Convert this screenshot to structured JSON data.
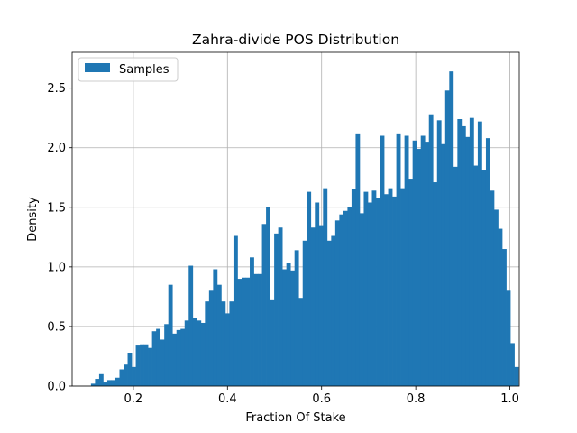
{
  "chart_data": {
    "type": "bar",
    "title": "Zahra-divide POS Distribution",
    "xlabel": "Fraction Of Stake",
    "ylabel": "Density",
    "xlim": [
      0.07,
      1.02
    ],
    "ylim": [
      0,
      2.8
    ],
    "xticks": [
      0.2,
      0.4,
      0.6,
      0.8,
      1.0
    ],
    "xtick_labels": [
      "0.2",
      "0.4",
      "0.6",
      "0.8",
      "1.0"
    ],
    "yticks": [
      0.0,
      0.5,
      1.0,
      1.5,
      2.0,
      2.5
    ],
    "ytick_labels": [
      "0.0",
      "0.5",
      "1.0",
      "1.5",
      "2.0",
      "2.5"
    ],
    "grid": true,
    "legend_position": "top-left",
    "color": "#1f77b4",
    "series": [
      {
        "name": "Samples",
        "bin_start": 0.11,
        "bin_width": 0.00865,
        "values": [
          0.02,
          0.06,
          0.1,
          0.03,
          0.05,
          0.05,
          0.07,
          0.14,
          0.18,
          0.28,
          0.16,
          0.34,
          0.35,
          0.35,
          0.32,
          0.46,
          0.48,
          0.39,
          0.52,
          0.85,
          0.44,
          0.47,
          0.48,
          0.55,
          1.01,
          0.57,
          0.55,
          0.53,
          0.71,
          0.8,
          0.98,
          0.85,
          0.71,
          0.61,
          0.71,
          1.26,
          0.9,
          0.91,
          0.91,
          1.08,
          0.94,
          0.94,
          1.36,
          1.5,
          0.72,
          1.28,
          1.33,
          0.98,
          1.03,
          0.97,
          1.14,
          0.74,
          1.22,
          1.63,
          1.33,
          1.54,
          1.35,
          1.66,
          1.22,
          1.26,
          1.39,
          1.44,
          1.47,
          1.5,
          1.65,
          2.12,
          1.45,
          1.63,
          1.54,
          1.64,
          1.58,
          2.1,
          1.61,
          1.66,
          1.59,
          2.12,
          1.66,
          2.1,
          1.74,
          2.06,
          1.99,
          2.1,
          2.05,
          2.28,
          1.71,
          2.23,
          2.03,
          2.48,
          2.64,
          1.84,
          2.24,
          2.18,
          2.09,
          2.25,
          1.85,
          2.22,
          1.81,
          2.08,
          1.64,
          1.48,
          1.32,
          1.15,
          0.8,
          0.36,
          0.16
        ]
      }
    ]
  }
}
